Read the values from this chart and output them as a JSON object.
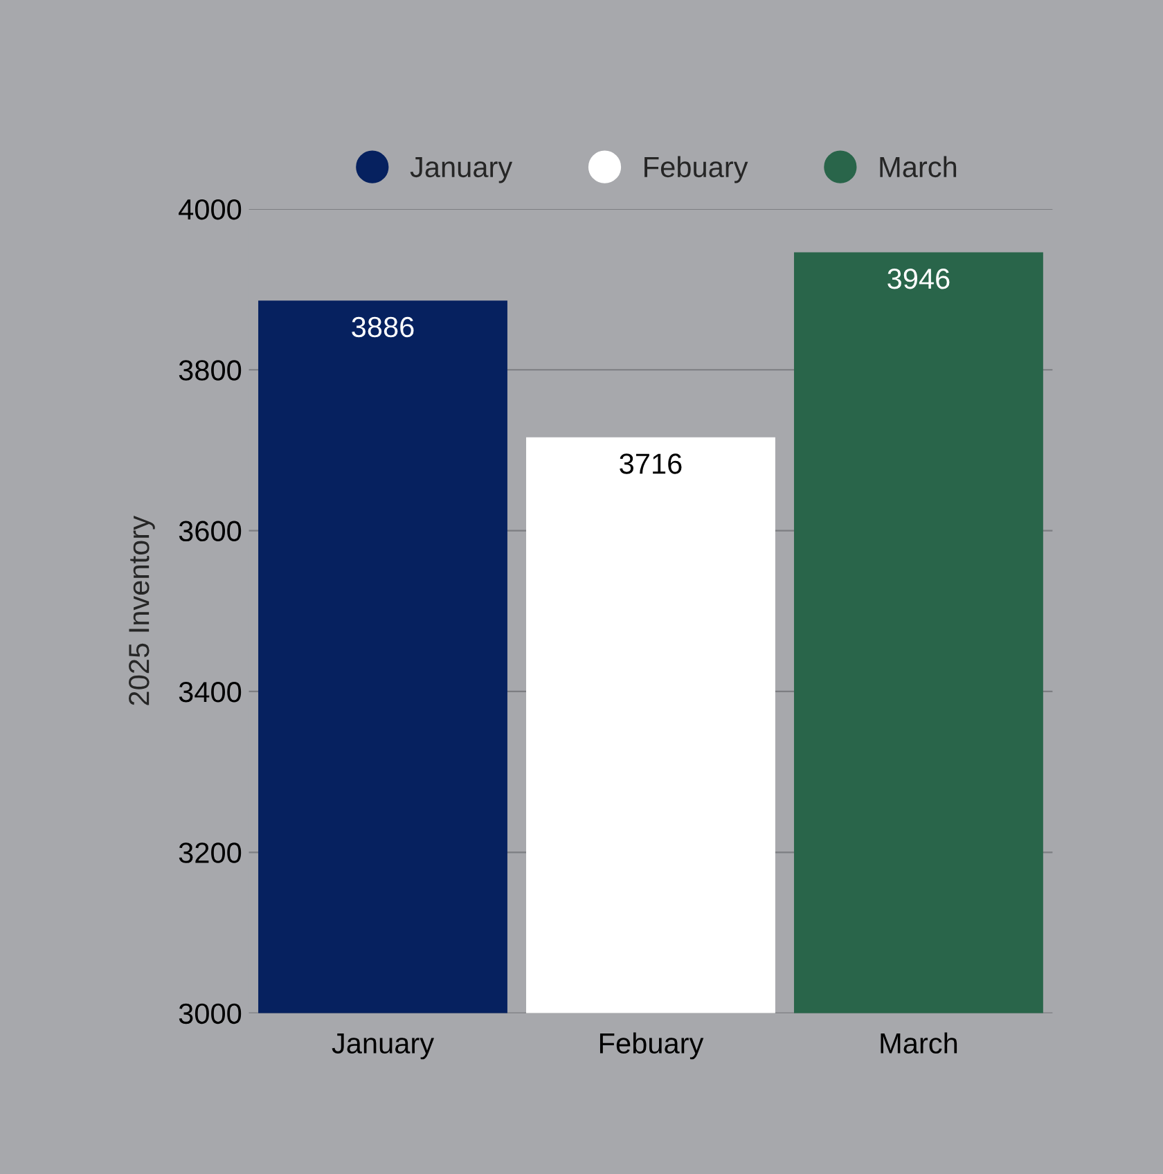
{
  "chart_data": {
    "type": "bar",
    "ylabel": "2025 Inventory",
    "categories": [
      "January",
      "Febuary",
      "March"
    ],
    "series": [
      {
        "name": "January",
        "color": "#06215f",
        "values": [
          3886,
          null,
          null
        ]
      },
      {
        "name": "Febuary",
        "color": "#ffffff",
        "values": [
          null,
          3716,
          null
        ]
      },
      {
        "name": "March",
        "color": "#29654a",
        "values": [
          null,
          null,
          3946
        ]
      }
    ],
    "ylim": [
      3000,
      4000
    ],
    "yticks": [
      3000,
      3200,
      3400,
      3600,
      3800,
      4000
    ],
    "grid": "y",
    "legend": "top",
    "data_labels": true
  }
}
